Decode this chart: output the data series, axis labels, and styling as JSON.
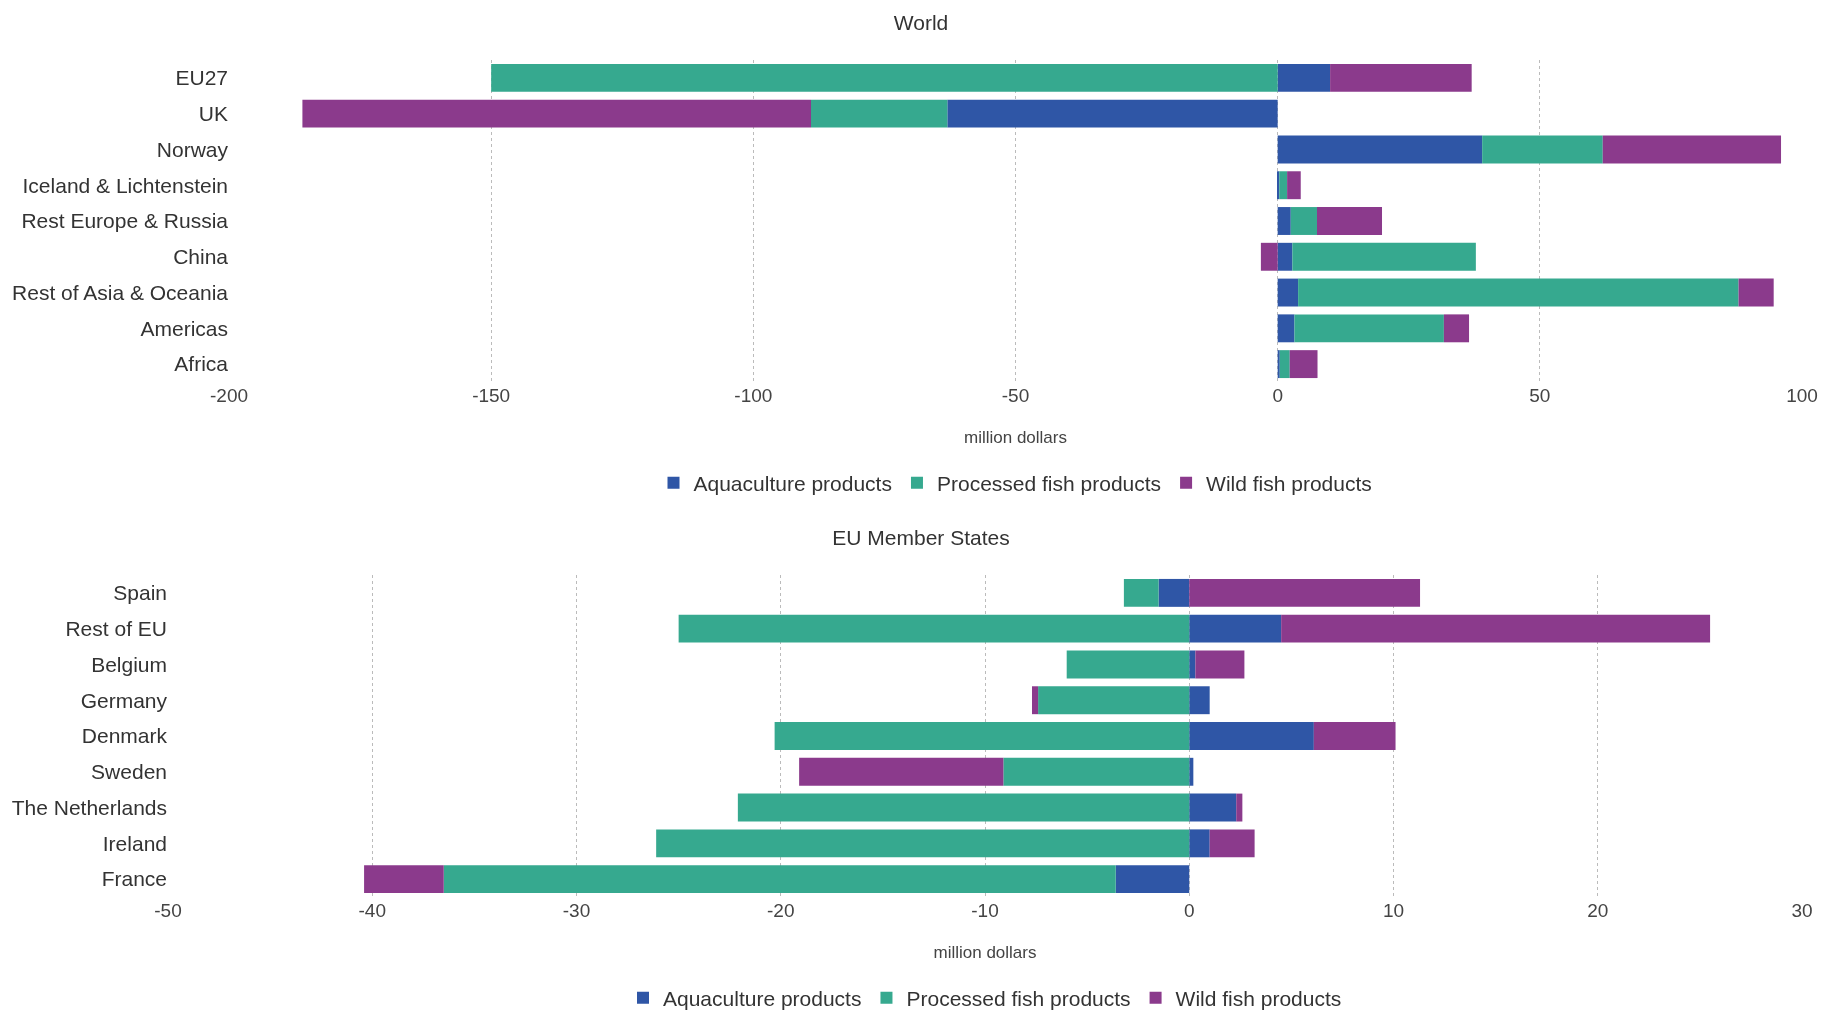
{
  "chart_data": [
    {
      "type": "bar",
      "title": "World",
      "orientation": "horizontal",
      "stacked": true,
      "xlabel": "million dollars",
      "categories": [
        "EU27",
        "UK",
        "Norway",
        "Iceland & Lichtenstein",
        "Rest Europe & Russia",
        "China",
        "Rest of Asia & Oceania",
        "Americas",
        "Africa"
      ],
      "xlim": [
        -200,
        100
      ],
      "xticks": [
        -200,
        -150,
        -100,
        -50,
        0,
        50,
        100
      ],
      "grid": "x",
      "legend": "bottom",
      "series": [
        {
          "name": "Aquaculture products",
          "color": "#2f56a6",
          "values": [
            10,
            -63,
            39,
            0.3,
            2.5,
            2.8,
            3.9,
            3.2,
            0.4
          ]
        },
        {
          "name": "Processed fish products",
          "color": "#36a98f",
          "values": [
            -150,
            -26,
            23,
            1.5,
            5,
            35,
            84,
            28.5,
            1.9
          ]
        },
        {
          "name": "Wild fish products",
          "color": "#8b3a8c",
          "values": [
            27,
            -97,
            34,
            2.6,
            12.4,
            -3.2,
            6.7,
            4.8,
            5.3
          ]
        }
      ]
    },
    {
      "type": "bar",
      "title": "EU Member States",
      "orientation": "horizontal",
      "stacked": true,
      "xlabel": "million dollars",
      "categories": [
        "Spain",
        "Rest of EU",
        "Belgium",
        "Germany",
        "Denmark",
        "Sweden",
        "The Netherlands",
        "Ireland",
        "France"
      ],
      "xlim": [
        -50,
        30
      ],
      "xticks": [
        -50,
        -40,
        -30,
        -20,
        -10,
        0,
        10,
        20,
        30
      ],
      "grid": "x",
      "legend": "bottom",
      "series": [
        {
          "name": "Aquaculture products",
          "color": "#2f56a6",
          "values": [
            -1.5,
            4.5,
            0.3,
            1,
            6.1,
            0.2,
            2.3,
            1,
            -3.6
          ]
        },
        {
          "name": "Processed fish products",
          "color": "#36a98f",
          "values": [
            -1.7,
            -25,
            -6,
            -7.4,
            -20.3,
            -9.1,
            -22.1,
            -26.1,
            -32.9
          ]
        },
        {
          "name": "Wild fish products",
          "color": "#8b3a8c",
          "values": [
            11.3,
            21,
            2.4,
            -0.3,
            4,
            -10,
            0.3,
            2.2,
            -3.9
          ]
        }
      ]
    }
  ]
}
